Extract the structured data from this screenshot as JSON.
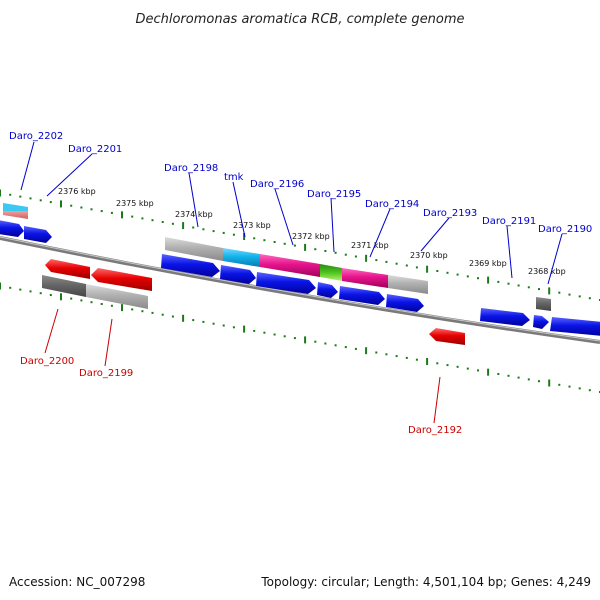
{
  "title": "Dechloromonas aromatica RCB, complete genome",
  "footer": {
    "accession": "Accession: NC_007298",
    "summary": "Topology: circular; Length: 4,501,104 bp; Genes: 4,249"
  },
  "colors": {
    "forward_label": "#0000cc",
    "reverse_label": "#cc0000",
    "scale_dots": "#1a7a1a",
    "backbone": "#7a7a7a",
    "blue_gene": "#0a14e6",
    "red_gene": "#e60000",
    "cyan": "#12b4ea",
    "magenta": "#e6148c",
    "green": "#4cc41e",
    "gray": "#b0b0b0",
    "dark_gray": "#666666",
    "salmon": "#e88c8c"
  },
  "scale": {
    "kbp_labels": [
      "2376 kbp",
      "2375 kbp",
      "2374 kbp",
      "2373 kbp",
      "2372 kbp",
      "2371 kbp",
      "2370 kbp",
      "2369 kbp",
      "2368 kbp"
    ]
  },
  "forward_labels": [
    "Daro_2202",
    "Daro_2201",
    "Daro_2198",
    "tmk",
    "Daro_2196",
    "Daro_2195",
    "Daro_2194",
    "Daro_2193",
    "Daro_2191",
    "Daro_2190"
  ],
  "reverse_labels": [
    "Daro_2200",
    "Daro_2199",
    "Daro_2192"
  ]
}
